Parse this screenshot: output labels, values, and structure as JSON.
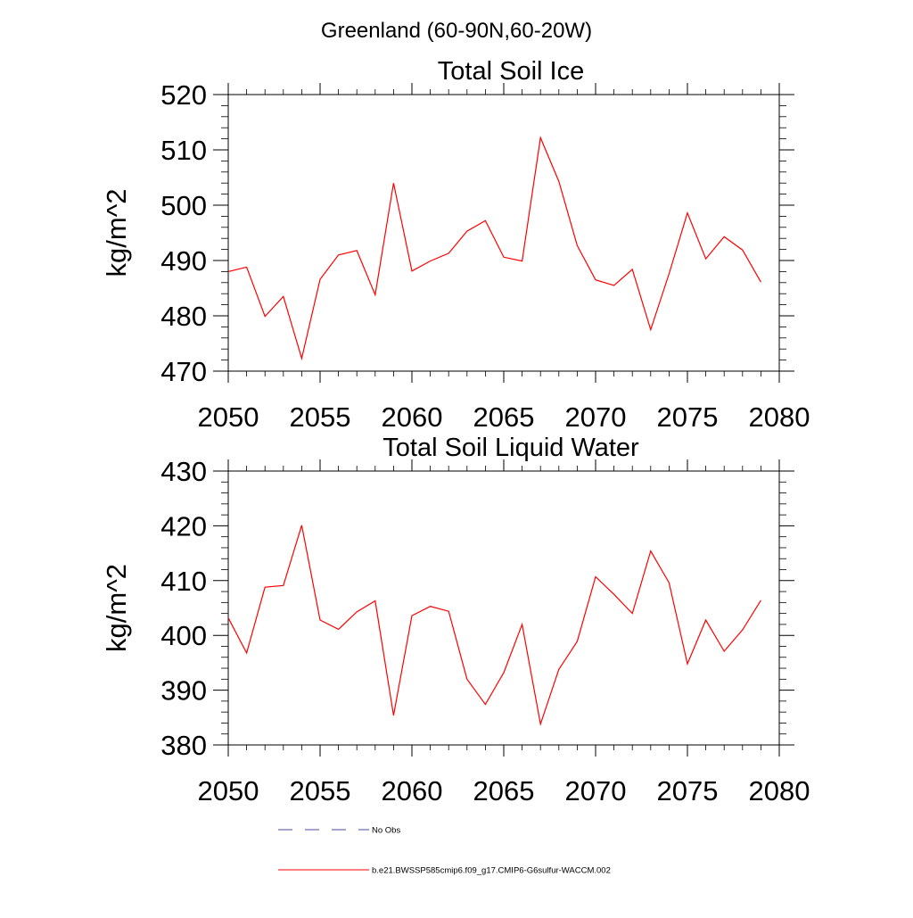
{
  "figure": {
    "suptitle": "Greenland (60-90N,60-20W)"
  },
  "legend": {
    "entries": [
      {
        "label": "No Obs",
        "style": "dashed",
        "color": "#4a4aa0"
      },
      {
        "label": "b.e21.BWSSP585cmip6.f09_g17.CMIP6-G6sulfur-WACCM.002",
        "style": "solid",
        "color": "#ff0000"
      }
    ]
  },
  "chart_data": [
    {
      "type": "line",
      "title": "Total Soil Ice",
      "ylabel": "kg/m^2",
      "xlabel": "",
      "xlim": [
        2050,
        2080
      ],
      "ylim": [
        470,
        520
      ],
      "xticks": [
        2050,
        2055,
        2060,
        2065,
        2070,
        2075,
        2080
      ],
      "yticks": [
        470,
        480,
        490,
        500,
        510,
        520
      ],
      "x": [
        2050,
        2051,
        2052,
        2053,
        2054,
        2055,
        2056,
        2057,
        2058,
        2059,
        2060,
        2061,
        2062,
        2063,
        2064,
        2065,
        2066,
        2067,
        2068,
        2069,
        2070,
        2071,
        2072,
        2073,
        2074,
        2075,
        2076,
        2077,
        2078,
        2079
      ],
      "series": [
        {
          "name": "b.e21.BWSSP585cmip6.f09_g17.CMIP6-G6sulfur-WACCM.002",
          "color": "#ff0000",
          "values": [
            488.0,
            488.8,
            479.9,
            483.5,
            472.3,
            486.6,
            491.0,
            491.8,
            483.8,
            504.0,
            488.1,
            489.9,
            491.3,
            495.3,
            497.2,
            490.6,
            489.9,
            512.2,
            504.3,
            492.7,
            486.5,
            485.5,
            488.4,
            477.5,
            487.6,
            498.6,
            490.3,
            494.3,
            491.9,
            486.1
          ]
        }
      ],
      "grid": false
    },
    {
      "type": "line",
      "title": "Total Soil Liquid Water",
      "ylabel": "kg/m^2",
      "xlabel": "",
      "xlim": [
        2050,
        2080
      ],
      "ylim": [
        380,
        430
      ],
      "xticks": [
        2050,
        2055,
        2060,
        2065,
        2070,
        2075,
        2080
      ],
      "yticks": [
        380,
        390,
        400,
        410,
        420,
        430
      ],
      "x": [
        2050,
        2051,
        2052,
        2053,
        2054,
        2055,
        2056,
        2057,
        2058,
        2059,
        2060,
        2061,
        2062,
        2063,
        2064,
        2065,
        2066,
        2067,
        2068,
        2069,
        2070,
        2071,
        2072,
        2073,
        2074,
        2075,
        2076,
        2077,
        2078,
        2079
      ],
      "series": [
        {
          "name": "b.e21.BWSSP585cmip6.f09_g17.CMIP6-G6sulfur-WACCM.002",
          "color": "#ff0000",
          "values": [
            403.2,
            396.8,
            408.8,
            409.1,
            420.1,
            402.8,
            401.1,
            404.3,
            406.3,
            385.4,
            403.6,
            405.3,
            404.4,
            392.0,
            387.4,
            393.2,
            402.0,
            383.8,
            393.8,
            398.9,
            410.7,
            407.5,
            404.0,
            415.4,
            409.6,
            394.8,
            402.8,
            397.1,
            401.0,
            406.4
          ]
        }
      ],
      "grid": false
    }
  ]
}
